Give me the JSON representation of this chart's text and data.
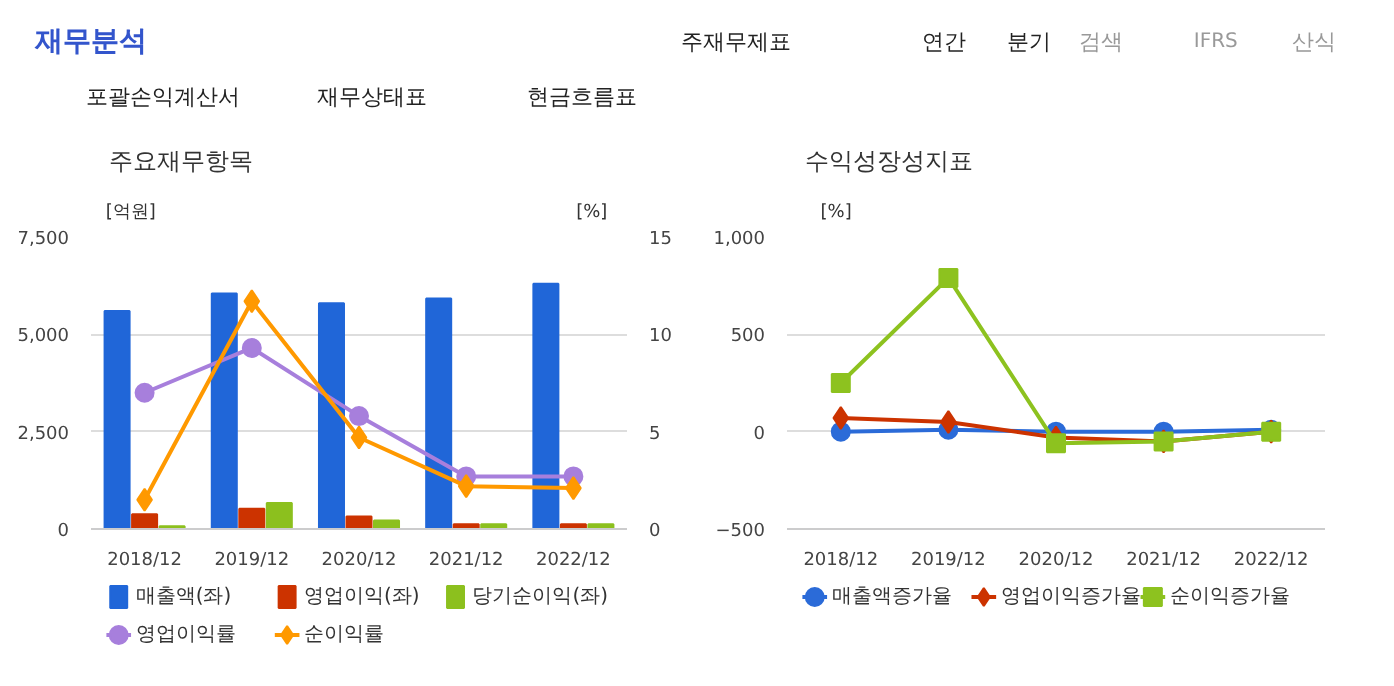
{
  "chart_data": [
    {
      "type": "other",
      "annotations": [
        "재무분석",
        "주재무제표",
        "연간",
        "분기",
        "검색",
        "IFRS",
        "산식",
        "포괄손익계산서",
        "재무상태표",
        "현금흐름표"
      ]
    },
    {
      "type": "bar",
      "title": "주요재무항목",
      "ylabel": "[억원]",
      "y2label": "[%]",
      "categories": [
        "2018/12",
        "2019/12",
        "2020/12",
        "2021/12",
        "2022/12"
      ],
      "series": [
        {
          "name": "매출액(좌)",
          "color": "#2066d8",
          "values": [
            5600,
            6050,
            5800,
            5920,
            6300
          ]
        },
        {
          "name": "영업이익(좌)",
          "color": "#cc3300",
          "values": [
            380,
            520,
            320,
            120,
            120
          ]
        },
        {
          "name": "당기순이익(좌)",
          "color": "#8cc01e",
          "values": [
            70,
            670,
            220,
            120,
            120
          ]
        },
        {
          "name": "영업이익률",
          "type": "line",
          "axis": "y2",
          "marker": "circle",
          "color": "#a77fdc",
          "values": [
            7.0,
            9.3,
            5.8,
            2.7,
            2.7
          ]
        },
        {
          "name": "순이익률",
          "type": "line",
          "axis": "y2",
          "marker": "diamond",
          "color": "#ff9900",
          "values": [
            1.5,
            11.7,
            4.7,
            2.2,
            2.1
          ]
        }
      ],
      "ylim": [
        0,
        7500
      ],
      "yticks": [
        0,
        {
          "value": 2500,
          "label": "2,500"
        },
        {
          "value": 5000,
          "label": "5,000"
        },
        {
          "value": 7500,
          "label": "7,500"
        }
      ],
      "y2lim": [
        0,
        15
      ],
      "y2ticks": [
        0,
        5,
        10,
        15
      ],
      "grid": "y",
      "legend": "bottom"
    },
    {
      "type": "line",
      "title": "수익성장성지표",
      "ylabel": "[%]",
      "categories": [
        "2018/12",
        "2019/12",
        "2020/12",
        "2021/12",
        "2022/12"
      ],
      "series": [
        {
          "name": "매출액증가율",
          "color": "#2b6bd8",
          "marker": "circle",
          "values": [
            0,
            10,
            0,
            0,
            10
          ]
        },
        {
          "name": "영업이익증가율",
          "color": "#cc3300",
          "marker": "diamond",
          "values": [
            70,
            50,
            -30,
            -50,
            0
          ]
        },
        {
          "name": "순이익증가율",
          "color": "#8dc21f",
          "marker": "square",
          "values": [
            250,
            790,
            -60,
            -50,
            0
          ]
        }
      ],
      "ylim": [
        -500,
        1000
      ],
      "yticks": [
        -500,
        0,
        500,
        {
          "value": 1000,
          "label": "1,000"
        }
      ],
      "grid": "y",
      "legend": "bottom"
    }
  ]
}
